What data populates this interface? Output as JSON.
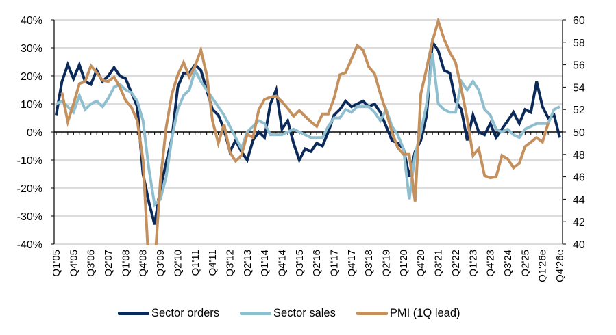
{
  "chart_data": {
    "type": "line",
    "title": "",
    "xlabel": "",
    "ylabel": "",
    "y2label": "",
    "grid": true,
    "legend_position": "bottom",
    "ylim": [
      -0.4,
      0.4
    ],
    "y2lim": [
      40,
      60
    ],
    "y_ticks": [
      "40%",
      "30%",
      "20%",
      "10%",
      "0%",
      "-10%",
      "-20%",
      "-30%",
      "-40%"
    ],
    "y_tick_values": [
      0.4,
      0.3,
      0.2,
      0.1,
      0.0,
      -0.1,
      -0.2,
      -0.3,
      -0.4
    ],
    "y2_ticks": [
      "60",
      "58",
      "56",
      "54",
      "52",
      "50",
      "48",
      "46",
      "44",
      "42",
      "40"
    ],
    "y2_tick_values": [
      60,
      58,
      56,
      54,
      52,
      50,
      48,
      46,
      44,
      42,
      40
    ],
    "x_count": 88,
    "x_tick_labels": [
      "Q1'05",
      "Q4'05",
      "Q3'06",
      "Q2'07",
      "Q1'08",
      "Q4'08",
      "Q3'09",
      "Q2'10",
      "Q1'11",
      "Q4'11",
      "Q3'12",
      "Q2'13",
      "Q1'14",
      "Q4'14",
      "Q3'15",
      "Q2'16",
      "Q1'17",
      "Q4'17",
      "Q3'18",
      "Q2'19",
      "Q1'20",
      "Q4'20",
      "Q3'21",
      "Q2'22",
      "Q1'23",
      "Q4'23",
      "Q3'24",
      "Q2'25",
      "Q1'26e",
      "Q4'26e"
    ],
    "x_tick_every": 3,
    "series": [
      {
        "name": "Sector orders",
        "axis": "left",
        "color": "#0b2a5a",
        "start_index": 0,
        "values": [
          6,
          18,
          24,
          19,
          24,
          18,
          17,
          22,
          18,
          20,
          23,
          20,
          19,
          14,
          9,
          -15,
          -25,
          -33,
          -20,
          -11,
          -2,
          16,
          21,
          21,
          24,
          22,
          15,
          8,
          6,
          1,
          -7,
          -3,
          -7,
          -10,
          -3,
          0,
          -2,
          10,
          15,
          1,
          4,
          -4,
          -10,
          -6,
          -7,
          -4,
          -5,
          0,
          6,
          8,
          11,
          9,
          10,
          11,
          9,
          10,
          7,
          2,
          -3,
          -4,
          -6,
          -16,
          -7,
          -3,
          6,
          32,
          29,
          22,
          21,
          11,
          8,
          -3,
          6,
          0,
          -1,
          3,
          -2,
          1,
          4,
          7,
          3,
          8,
          7,
          18,
          9,
          5,
          6,
          -2
        ]
      },
      {
        "name": "Sector sales",
        "axis": "left",
        "color": "#8fbfcf",
        "start_index": 0,
        "values": [
          10,
          11,
          9,
          7,
          13,
          8,
          10,
          11,
          9,
          12,
          16,
          17,
          15,
          14,
          11,
          4,
          -13,
          -26,
          -24,
          -16,
          -2,
          8,
          13,
          15,
          22,
          18,
          15,
          12,
          9,
          6,
          2,
          -2,
          -6,
          0,
          2,
          4,
          3,
          -1,
          -1,
          -1,
          0,
          1,
          0,
          -1,
          -2,
          -2,
          -2,
          2,
          5,
          5,
          8,
          7,
          9,
          9,
          9,
          7,
          4,
          8,
          2,
          -1,
          -6,
          -24,
          -8,
          0,
          10,
          28,
          10,
          8,
          7,
          7,
          18,
          15,
          18,
          15,
          8,
          6,
          1,
          0,
          1,
          -1,
          -2,
          1,
          2,
          3,
          3,
          3,
          8,
          9
        ]
      },
      {
        "name": "PMI (1Q lead)",
        "axis": "right",
        "color": "#c4915e",
        "start_index": 1,
        "values": [
          53.5,
          50.9,
          52.5,
          54.3,
          54.5,
          55.9,
          55.3,
          54.6,
          54.5,
          54.9,
          54.0,
          52.8,
          52.2,
          51.0,
          47.5,
          38.0,
          38.0,
          45.7,
          50.4,
          53.4,
          55.1,
          56.2,
          54.9,
          55.9,
          57.3,
          55.1,
          51.0,
          49.0,
          50.7,
          48.2,
          47.4,
          47.9,
          49.8,
          49.5,
          52.0,
          52.9,
          53.1,
          53.2,
          52.7,
          52.1,
          51.4,
          51.9,
          51.4,
          50.9,
          50.5,
          51.6,
          51.6,
          53.0,
          55.1,
          55.3,
          56.5,
          57.7,
          57.3,
          55.8,
          55.2,
          53.4,
          51.8,
          50.0,
          48.6,
          48.0,
          48.0,
          43.8,
          53.4,
          55.7,
          58.1,
          59.9,
          58.3,
          57.1,
          56.2,
          53.8,
          51.2,
          47.9,
          48.5,
          46.1,
          45.9,
          46.0,
          47.9,
          47.6,
          46.8,
          47.2,
          48.7,
          49.1,
          49.5,
          49.1,
          50.8
        ]
      }
    ]
  },
  "legend": {
    "items": [
      {
        "label": "Sector orders",
        "color": "#0b2a5a"
      },
      {
        "label": "Sector sales",
        "color": "#8fbfcf"
      },
      {
        "label": "PMI (1Q lead)",
        "color": "#c4915e"
      }
    ]
  }
}
